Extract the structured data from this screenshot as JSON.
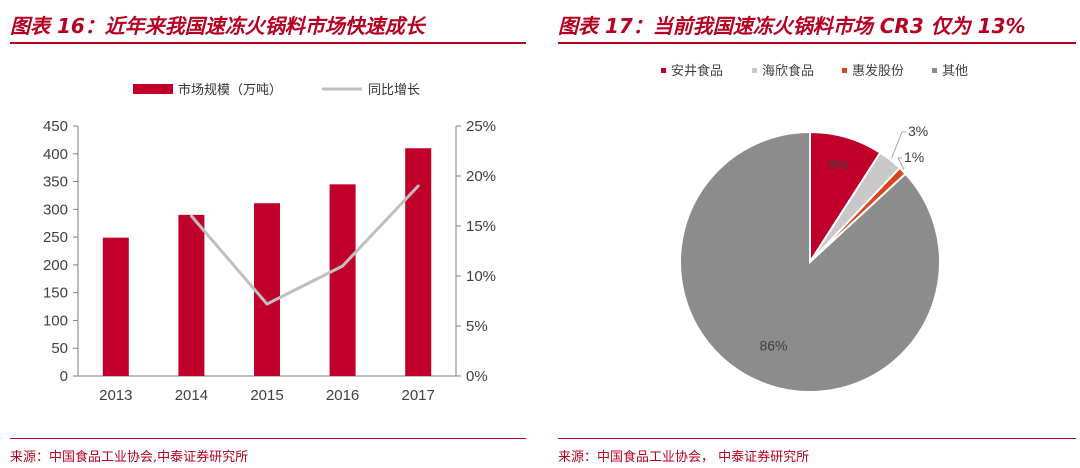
{
  "left": {
    "title": "图表 16：近年来我国速冻火锅料市场快速成长",
    "source": "来源：中国食品工业协会,中泰证券研究所"
  },
  "right": {
    "title": "图表 17：当前我国速冻火锅料市场 CR3 仅为 13%",
    "source": "来源：中国食品工业协会， 中泰证券研究所"
  },
  "chart_data": [
    {
      "type": "bar",
      "categories": [
        "2013",
        "2014",
        "2015",
        "2016",
        "2017"
      ],
      "series": [
        {
          "name": "市场规模（万吨）",
          "type": "bar",
          "axis": "left",
          "values": [
            249,
            290,
            311,
            345,
            410
          ],
          "color": "#c0002b"
        },
        {
          "name": "同比增长",
          "type": "line",
          "axis": "right",
          "values": [
            null,
            16,
            7.2,
            11,
            19
          ],
          "color": "#bfbfbf"
        }
      ],
      "y_left": {
        "ylim": [
          0,
          450
        ],
        "ticks": [
          0,
          50,
          100,
          150,
          200,
          250,
          300,
          350,
          400,
          450
        ]
      },
      "y_right": {
        "ylim": [
          0,
          25
        ],
        "ticks": [
          "0%",
          "5%",
          "10%",
          "15%",
          "20%",
          "25%"
        ]
      },
      "legend_position": "top",
      "grid": false
    },
    {
      "type": "pie",
      "slices": [
        {
          "label": "安井食品",
          "value": 9,
          "display": "9%",
          "color": "#c0002b"
        },
        {
          "label": "海欣食品",
          "value": 3,
          "display": "3%",
          "color": "#c8c8c8"
        },
        {
          "label": "惠发股份",
          "value": 1,
          "display": "1%",
          "color": "#d9441d"
        },
        {
          "label": "其他",
          "value": 86,
          "display": "86%",
          "color": "#8c8c8c"
        }
      ],
      "legend_position": "top"
    }
  ]
}
